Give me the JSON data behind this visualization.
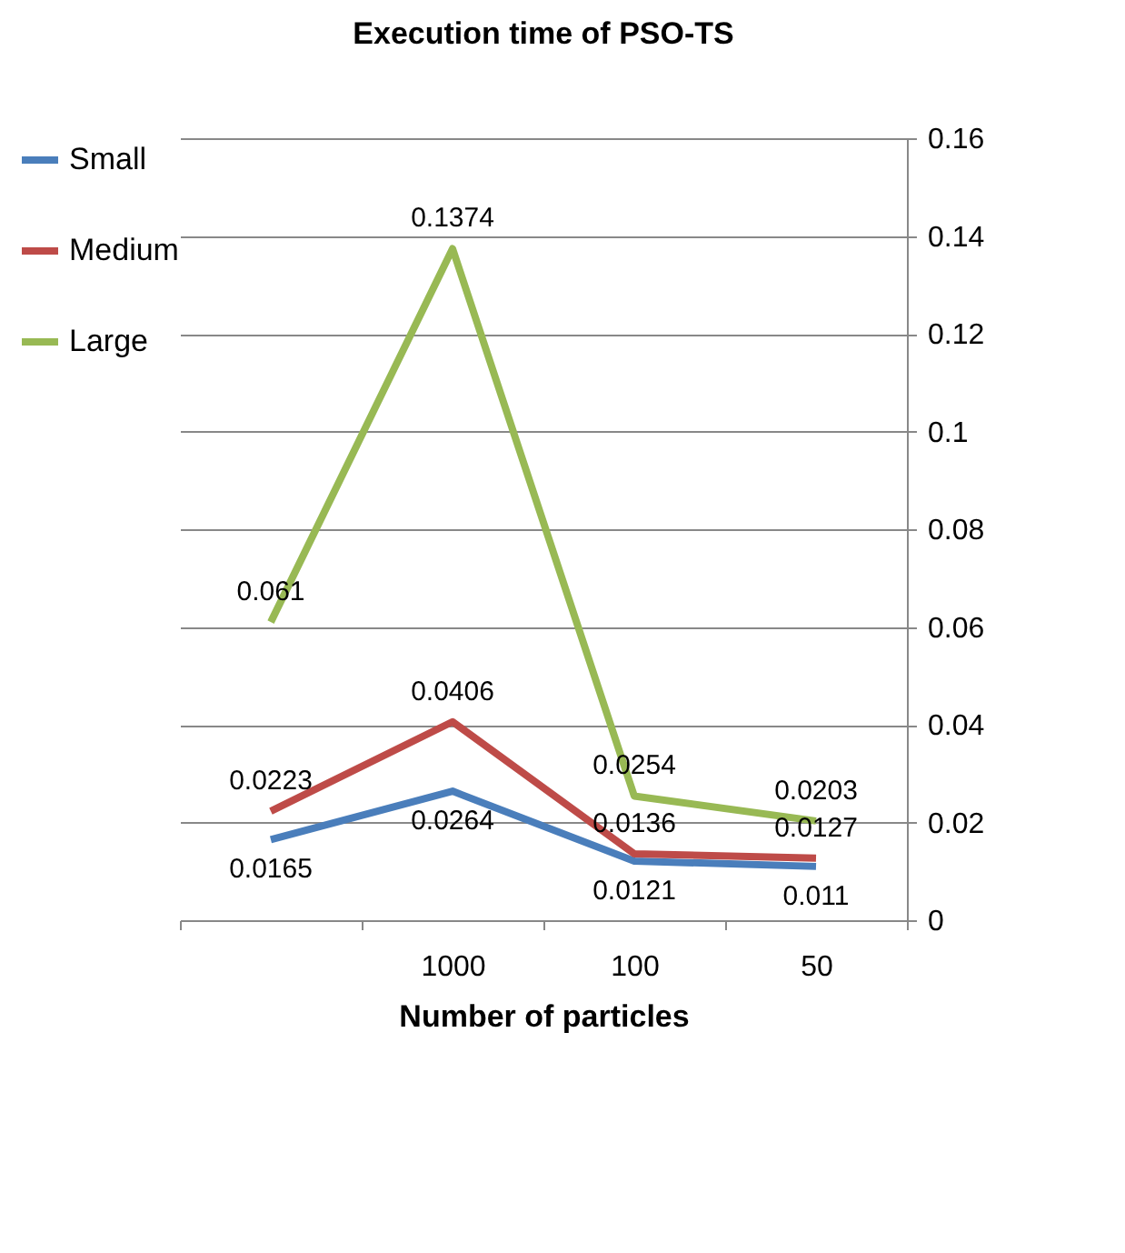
{
  "chart_data": {
    "type": "line",
    "title": "Execution time of PSO-TS",
    "xlabel": "Number of particles",
    "categories": [
      null,
      "1000",
      "100",
      "50"
    ],
    "series": [
      {
        "name": "Small",
        "color": "#4a7ebb",
        "values": [
          0.0165,
          0.0264,
          0.0121,
          0.011
        ]
      },
      {
        "name": "Medium",
        "color": "#be4b48",
        "values": [
          0.0223,
          0.0406,
          0.0136,
          0.0127
        ]
      },
      {
        "name": "Large",
        "color": "#98b954",
        "values": [
          0.061,
          0.1374,
          0.0254,
          0.0203
        ]
      }
    ],
    "ylim": [
      0,
      0.16
    ],
    "yticks": [
      0,
      0.02,
      0.04,
      0.06,
      0.08,
      0.1,
      0.12,
      0.14,
      0.16
    ],
    "grid": "y",
    "legend": "left",
    "data_labels": true,
    "marker": "none",
    "line_style": "solid"
  }
}
